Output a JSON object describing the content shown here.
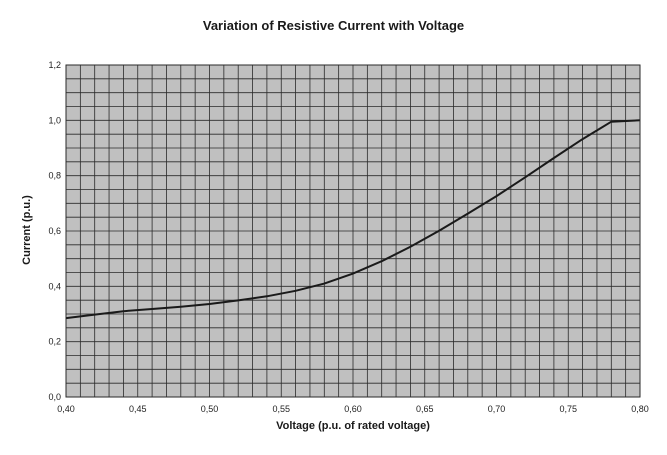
{
  "chart_data": {
    "type": "line",
    "title": "Variation of Resistive Current with Voltage",
    "xlabel": "Voltage (p.u. of rated voltage)",
    "ylabel": "Current (p.u.)",
    "xlim": [
      0.4,
      0.8
    ],
    "ylim": [
      0,
      1.2
    ],
    "x_ticks": [
      "0,40",
      "0,45",
      "0,50",
      "0,55",
      "0,60",
      "0,65",
      "0,70",
      "0,75",
      "0,80"
    ],
    "y_ticks": [
      "0,0",
      "0,2",
      "0,4",
      "0,6",
      "0,8",
      "1,0",
      "1,2"
    ],
    "grid": true,
    "legend": "none",
    "series": [
      {
        "x": [
          0.4,
          0.42,
          0.44,
          0.46,
          0.48,
          0.5,
          0.52,
          0.54,
          0.56,
          0.58,
          0.6,
          0.62,
          0.64,
          0.66,
          0.68,
          0.7,
          0.72,
          0.74,
          0.76,
          0.78,
          0.8
        ],
        "y": [
          0.285,
          0.298,
          0.31,
          0.318,
          0.326,
          0.336,
          0.349,
          0.364,
          0.384,
          0.41,
          0.446,
          0.491,
          0.543,
          0.601,
          0.663,
          0.726,
          0.794,
          0.864,
          0.932,
          0.995,
          1.0
        ],
        "color": "#1a1a1a"
      }
    ]
  },
  "colors": {
    "plot_background": "#c0c0c0",
    "grid": "#2a2a2a",
    "line": "#1a1a1a"
  }
}
